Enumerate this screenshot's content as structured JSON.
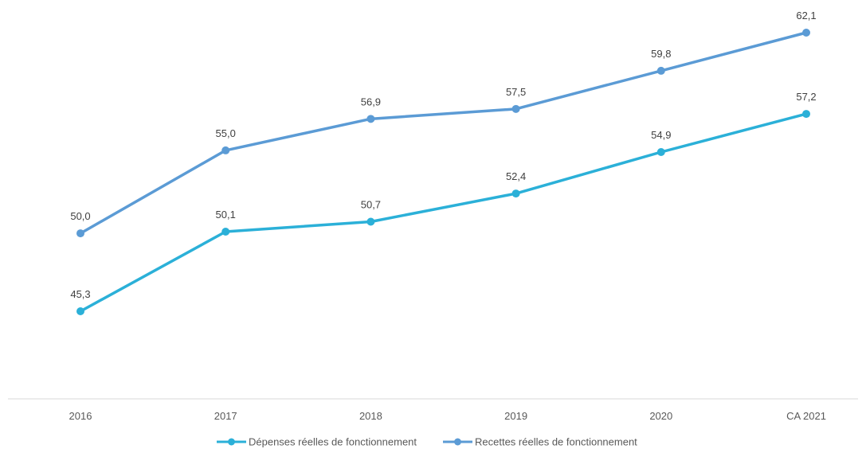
{
  "chart_data": {
    "type": "line",
    "title": "",
    "xlabel": "",
    "ylabel": "",
    "categories": [
      "2016",
      "2017",
      "2018",
      "2019",
      "2020",
      "CA 2021"
    ],
    "ylim": [
      35,
      63
    ],
    "grid": false,
    "legend_position": "bottom",
    "series": [
      {
        "name": "Dépenses réelles de fonctionnement",
        "color": "#2bb0d8",
        "values": [
          45.3,
          50.1,
          50.7,
          52.4,
          54.9,
          57.2
        ],
        "labels": [
          "45,3",
          "50,1",
          "50,7",
          "52,4",
          "54,9",
          "57,2"
        ]
      },
      {
        "name": "Recettes réelles de fonctionnement",
        "color": "#5b9bd5",
        "values": [
          50.0,
          55.0,
          56.9,
          57.5,
          59.8,
          62.1
        ],
        "labels": [
          "50,0",
          "55,0",
          "56,9",
          "57,5",
          "59,8",
          "62,1"
        ]
      }
    ]
  }
}
